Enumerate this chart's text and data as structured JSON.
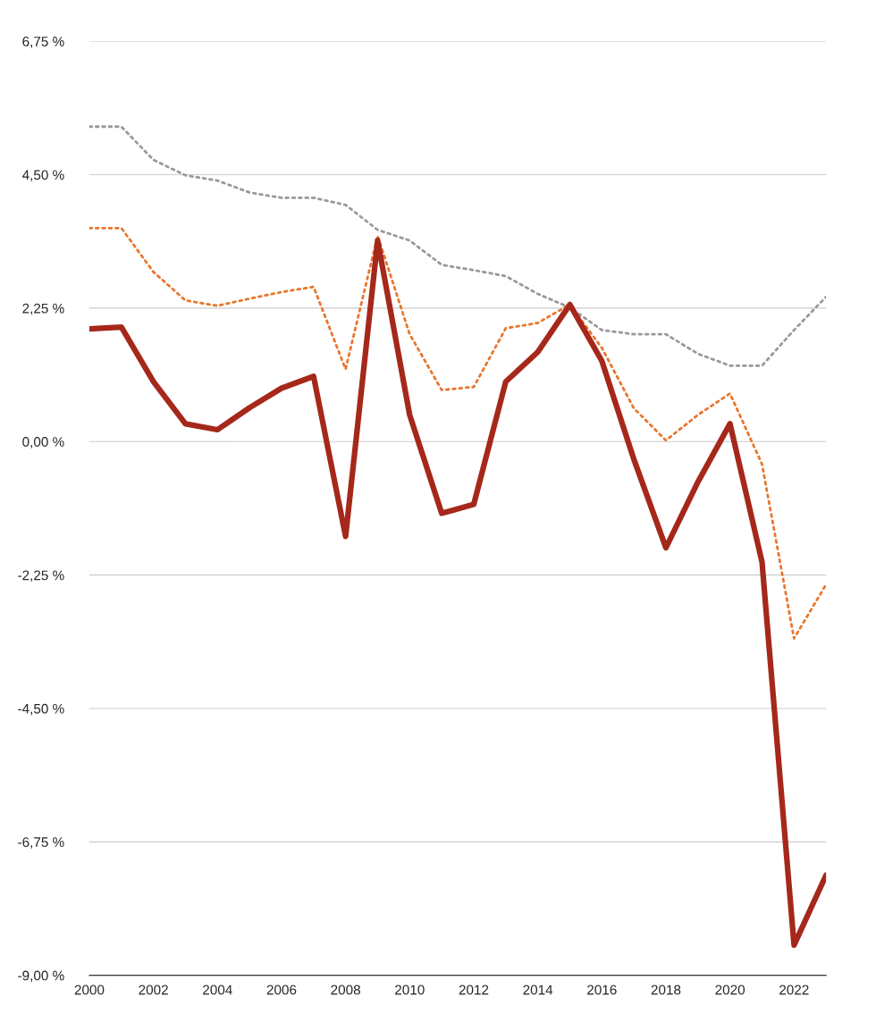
{
  "chart_data": {
    "type": "line",
    "x": [
      2000,
      2001,
      2002,
      2003,
      2004,
      2005,
      2006,
      2007,
      2008,
      2009,
      2010,
      2011,
      2012,
      2013,
      2014,
      2015,
      2016,
      2017,
      2018,
      2019,
      2020,
      2021,
      2022,
      2023
    ],
    "series": [
      {
        "color": "#a5281b",
        "line_style": "solid",
        "values": [
          1.9,
          1.93,
          1.01,
          0.3,
          0.2,
          0.57,
          0.9,
          1.1,
          -1.6,
          3.39,
          0.45,
          -1.21,
          -1.06,
          1.01,
          1.51,
          2.31,
          1.36,
          -0.3,
          -1.79,
          -0.68,
          0.3,
          -2.03,
          -8.49,
          -7.31
        ]
      },
      {
        "color": "#e8762d",
        "line_style": "dotted",
        "values": [
          3.6,
          3.6,
          2.86,
          2.38,
          2.29,
          2.41,
          2.52,
          2.61,
          1.22,
          3.47,
          1.81,
          0.87,
          0.92,
          1.91,
          2.0,
          2.31,
          1.58,
          0.56,
          0.02,
          0.45,
          0.81,
          -0.38,
          -3.32,
          -2.41
        ]
      },
      {
        "color": "#999999",
        "line_style": "dotted",
        "values": [
          5.31,
          5.31,
          4.75,
          4.49,
          4.4,
          4.2,
          4.11,
          4.11,
          3.99,
          3.57,
          3.39,
          2.98,
          2.89,
          2.79,
          2.49,
          2.26,
          1.88,
          1.81,
          1.81,
          1.48,
          1.28,
          1.28,
          1.88,
          2.44
        ]
      }
    ],
    "xlim": [
      2000,
      2023
    ],
    "xticks": [
      2000,
      2002,
      2004,
      2006,
      2008,
      2010,
      2012,
      2014,
      2016,
      2018,
      2020,
      2022
    ],
    "ylim": [
      -9,
      6.75
    ],
    "yticks": [
      {
        "value": -9,
        "label": "-9,00 %"
      },
      {
        "value": -6.75,
        "label": "-6,75 %"
      },
      {
        "value": -4.5,
        "label": "-4,50 %"
      },
      {
        "value": -2.25,
        "label": "-2,25 %"
      },
      {
        "value": 0,
        "label": "0,00 %"
      },
      {
        "value": 2.25,
        "label": "2,25 %"
      },
      {
        "value": 4.5,
        "label": "4,50 %"
      },
      {
        "value": 6.75,
        "label": "6,75 %"
      }
    ],
    "grid": "y",
    "marker": "none"
  }
}
